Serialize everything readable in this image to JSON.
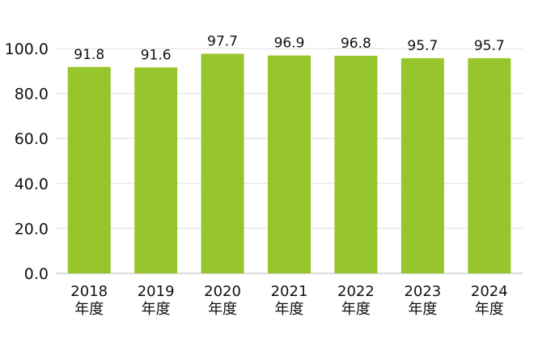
{
  "chart_data": {
    "type": "bar",
    "categories": [
      "2018\n年度",
      "2019\n年度",
      "2020\n年度",
      "2021\n年度",
      "2022\n年度",
      "2023\n年度",
      "2024\n年度"
    ],
    "values": [
      91.8,
      91.6,
      97.7,
      96.9,
      96.8,
      95.7,
      95.7
    ],
    "value_labels": [
      "91.8",
      "91.6",
      "97.7",
      "96.9",
      "96.8",
      "95.7",
      "95.7"
    ],
    "yticks": [
      "0.0",
      "20.0",
      "40.0",
      "60.0",
      "80.0",
      "100.0"
    ],
    "ylim": [
      0,
      100
    ],
    "grid": true,
    "bar_color": "#97c52c",
    "title": "",
    "xlabel": "",
    "ylabel": ""
  }
}
